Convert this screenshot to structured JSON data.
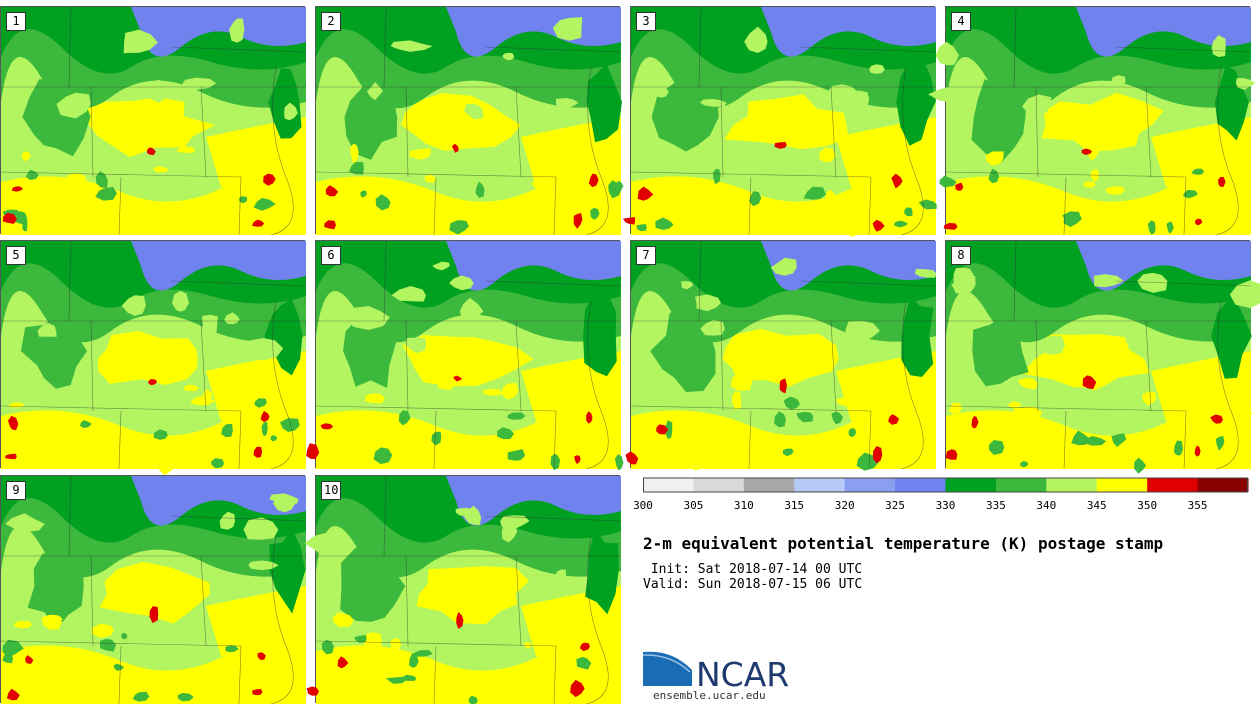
{
  "panels": [
    {
      "label": "1"
    },
    {
      "label": "2"
    },
    {
      "label": "3"
    },
    {
      "label": "4"
    },
    {
      "label": "5"
    },
    {
      "label": "6"
    },
    {
      "label": "7"
    },
    {
      "label": "8"
    },
    {
      "label": "9"
    },
    {
      "label": "10"
    }
  ],
  "colorbar": {
    "ticks": [
      "300",
      "305",
      "310",
      "315",
      "320",
      "325",
      "330",
      "335",
      "340",
      "345",
      "350",
      "355"
    ],
    "colors": [
      "#f0f0f0",
      "#d9d9d9",
      "#a9a9a9",
      "#b7c9f7",
      "#8a9ff0",
      "#6f82ee",
      "#00a020",
      "#3cb83c",
      "#b3f560",
      "#ffff00",
      "#e00000",
      "#8a0000"
    ]
  },
  "title": "2-m equivalent potential temperature (K) postage stamp",
  "init": " Init: Sat 2018-07-14 00 UTC",
  "valid": "Valid: Sun 2018-07-15 06 UTC",
  "logo": {
    "name": "NCAR",
    "url": "ensemble.ucar.edu"
  }
}
